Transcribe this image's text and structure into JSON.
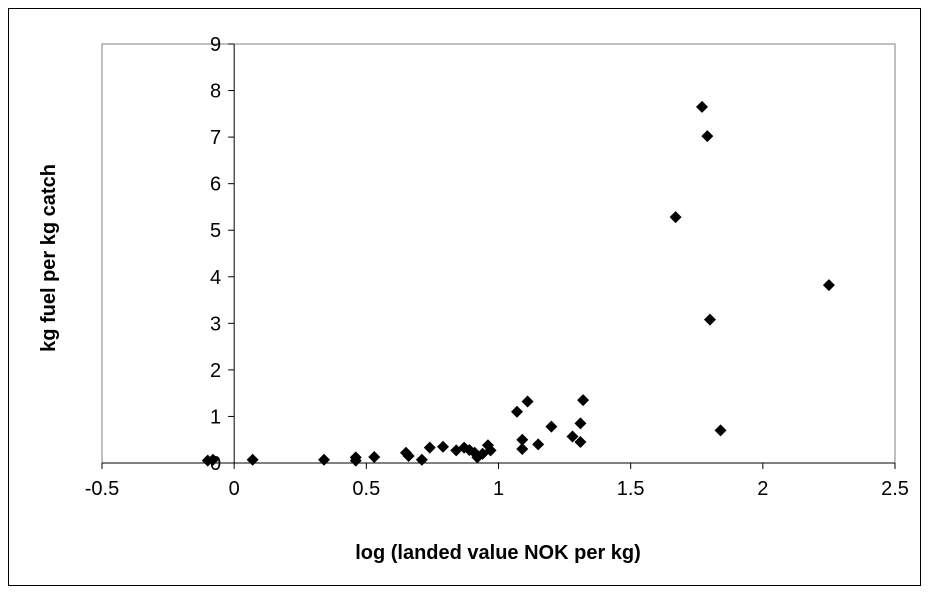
{
  "chart_data": {
    "type": "scatter",
    "title": "",
    "xlabel": "log (landed value NOK per kg)",
    "ylabel": "kg fuel per kg catch",
    "xlim": [
      -0.5,
      2.5
    ],
    "ylim": [
      0,
      9
    ],
    "x_ticks": [
      "-0.5",
      "0",
      "0.5",
      "1",
      "1.5",
      "2",
      "2.5"
    ],
    "y_ticks": [
      "0",
      "1",
      "2",
      "3",
      "4",
      "5",
      "6",
      "7",
      "8",
      "9"
    ],
    "grid": false,
    "legend": "none",
    "marker": "diamond",
    "colors": {
      "marker": "#000000",
      "axis": "#000000",
      "plot_border": "#808080"
    },
    "points": [
      {
        "x": -0.1,
        "y": 0.05
      },
      {
        "x": -0.08,
        "y": 0.07
      },
      {
        "x": 0.07,
        "y": 0.07
      },
      {
        "x": 0.34,
        "y": 0.07
      },
      {
        "x": 0.46,
        "y": 0.12
      },
      {
        "x": 0.46,
        "y": 0.05
      },
      {
        "x": 0.53,
        "y": 0.13
      },
      {
        "x": 0.65,
        "y": 0.22
      },
      {
        "x": 0.66,
        "y": 0.15
      },
      {
        "x": 0.71,
        "y": 0.07
      },
      {
        "x": 0.74,
        "y": 0.33
      },
      {
        "x": 0.79,
        "y": 0.35
      },
      {
        "x": 0.84,
        "y": 0.27
      },
      {
        "x": 0.87,
        "y": 0.33
      },
      {
        "x": 0.89,
        "y": 0.28
      },
      {
        "x": 0.91,
        "y": 0.22
      },
      {
        "x": 0.92,
        "y": 0.12
      },
      {
        "x": 0.94,
        "y": 0.2
      },
      {
        "x": 0.96,
        "y": 0.38
      },
      {
        "x": 0.97,
        "y": 0.27
      },
      {
        "x": 1.07,
        "y": 1.1
      },
      {
        "x": 1.09,
        "y": 0.3
      },
      {
        "x": 1.09,
        "y": 0.5
      },
      {
        "x": 1.11,
        "y": 1.32
      },
      {
        "x": 1.15,
        "y": 0.4
      },
      {
        "x": 1.2,
        "y": 0.78
      },
      {
        "x": 1.28,
        "y": 0.57
      },
      {
        "x": 1.31,
        "y": 0.45
      },
      {
        "x": 1.31,
        "y": 0.85
      },
      {
        "x": 1.32,
        "y": 1.35
      },
      {
        "x": 1.67,
        "y": 5.28
      },
      {
        "x": 1.77,
        "y": 7.65
      },
      {
        "x": 1.79,
        "y": 7.02
      },
      {
        "x": 1.8,
        "y": 3.08
      },
      {
        "x": 1.84,
        "y": 0.7
      },
      {
        "x": 2.25,
        "y": 3.82
      }
    ]
  }
}
